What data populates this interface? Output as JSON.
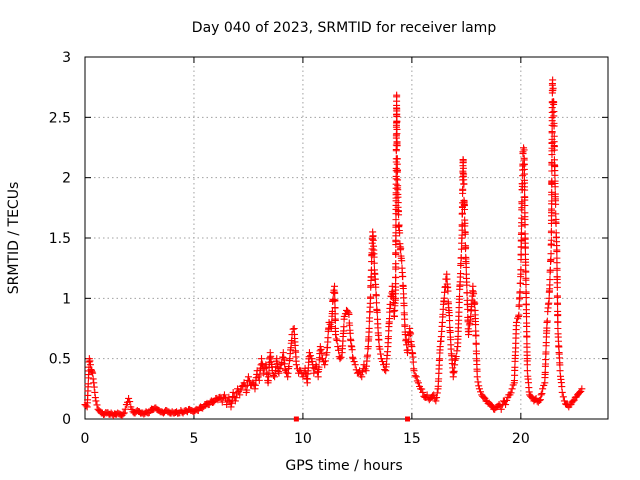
{
  "chart_data": {
    "type": "scatter",
    "title": "Day 040 of 2023, SRMTID for receiver lamp",
    "xlabel": "GPS time / hours",
    "ylabel": "SRMTID / TECUs",
    "xlim": [
      0,
      24
    ],
    "ylim": [
      0,
      3
    ],
    "xticks": [
      0,
      5,
      10,
      15,
      20
    ],
    "yticks": [
      0,
      0.5,
      1,
      1.5,
      2,
      2.5,
      3
    ],
    "ytick_labels": [
      "0",
      "0.5",
      "1",
      "1.5",
      "2",
      "2.5",
      "3"
    ],
    "grid": true,
    "marker": "+",
    "color": "#ff0000",
    "series": [
      {
        "name": "SRMTID",
        "points": [
          [
            0.0,
            0.12
          ],
          [
            0.1,
            0.1
          ],
          [
            0.2,
            0.5
          ],
          [
            0.25,
            0.45
          ],
          [
            0.3,
            0.4
          ],
          [
            0.35,
            0.38
          ],
          [
            0.4,
            0.3
          ],
          [
            0.45,
            0.22
          ],
          [
            0.5,
            0.15
          ],
          [
            0.6,
            0.08
          ],
          [
            0.7,
            0.06
          ],
          [
            0.8,
            0.05
          ],
          [
            0.9,
            0.04
          ],
          [
            1.0,
            0.05
          ],
          [
            1.1,
            0.04
          ],
          [
            1.2,
            0.05
          ],
          [
            1.3,
            0.03
          ],
          [
            1.4,
            0.04
          ],
          [
            1.5,
            0.05
          ],
          [
            1.6,
            0.04
          ],
          [
            1.7,
            0.03
          ],
          [
            1.8,
            0.05
          ],
          [
            1.9,
            0.12
          ],
          [
            2.0,
            0.17
          ],
          [
            2.1,
            0.1
          ],
          [
            2.2,
            0.06
          ],
          [
            2.3,
            0.05
          ],
          [
            2.4,
            0.07
          ],
          [
            2.5,
            0.06
          ],
          [
            2.6,
            0.05
          ],
          [
            2.7,
            0.04
          ],
          [
            2.8,
            0.06
          ],
          [
            2.9,
            0.05
          ],
          [
            3.0,
            0.07
          ],
          [
            3.1,
            0.08
          ],
          [
            3.2,
            0.09
          ],
          [
            3.3,
            0.08
          ],
          [
            3.4,
            0.07
          ],
          [
            3.5,
            0.06
          ],
          [
            3.6,
            0.05
          ],
          [
            3.7,
            0.07
          ],
          [
            3.8,
            0.06
          ],
          [
            3.9,
            0.05
          ],
          [
            4.0,
            0.06
          ],
          [
            4.1,
            0.05
          ],
          [
            4.2,
            0.06
          ],
          [
            4.3,
            0.05
          ],
          [
            4.4,
            0.07
          ],
          [
            4.5,
            0.05
          ],
          [
            4.6,
            0.07
          ],
          [
            4.7,
            0.06
          ],
          [
            4.8,
            0.08
          ],
          [
            4.9,
            0.07
          ],
          [
            5.0,
            0.06
          ],
          [
            5.1,
            0.08
          ],
          [
            5.2,
            0.07
          ],
          [
            5.3,
            0.1
          ],
          [
            5.4,
            0.09
          ],
          [
            5.5,
            0.12
          ],
          [
            5.6,
            0.13
          ],
          [
            5.7,
            0.12
          ],
          [
            5.8,
            0.15
          ],
          [
            5.9,
            0.14
          ],
          [
            6.0,
            0.17
          ],
          [
            6.1,
            0.16
          ],
          [
            6.2,
            0.18
          ],
          [
            6.3,
            0.14
          ],
          [
            6.4,
            0.2
          ],
          [
            6.5,
            0.12
          ],
          [
            6.6,
            0.18
          ],
          [
            6.7,
            0.1
          ],
          [
            6.8,
            0.22
          ],
          [
            6.9,
            0.15
          ],
          [
            7.0,
            0.25
          ],
          [
            7.1,
            0.2
          ],
          [
            7.2,
            0.27
          ],
          [
            7.3,
            0.3
          ],
          [
            7.4,
            0.22
          ],
          [
            7.5,
            0.35
          ],
          [
            7.6,
            0.28
          ],
          [
            7.7,
            0.3
          ],
          [
            7.8,
            0.25
          ],
          [
            7.9,
            0.4
          ],
          [
            8.0,
            0.32
          ],
          [
            8.1,
            0.5
          ],
          [
            8.2,
            0.38
          ],
          [
            8.3,
            0.45
          ],
          [
            8.4,
            0.3
          ],
          [
            8.5,
            0.55
          ],
          [
            8.6,
            0.4
          ],
          [
            8.7,
            0.35
          ],
          [
            8.8,
            0.5
          ],
          [
            8.9,
            0.38
          ],
          [
            9.0,
            0.45
          ],
          [
            9.1,
            0.55
          ],
          [
            9.2,
            0.4
          ],
          [
            9.3,
            0.35
          ],
          [
            9.4,
            0.5
          ],
          [
            9.5,
            0.7
          ],
          [
            9.6,
            0.75
          ],
          [
            9.7,
            0.45
          ],
          [
            9.8,
            0.38
          ],
          [
            9.9,
            0.4
          ],
          [
            10.0,
            0.35
          ],
          [
            10.1,
            0.42
          ],
          [
            10.2,
            0.3
          ],
          [
            10.3,
            0.55
          ],
          [
            10.4,
            0.5
          ],
          [
            10.5,
            0.38
          ],
          [
            10.6,
            0.45
          ],
          [
            10.7,
            0.35
          ],
          [
            10.8,
            0.6
          ],
          [
            10.9,
            0.5
          ],
          [
            11.0,
            0.45
          ],
          [
            11.1,
            0.55
          ],
          [
            11.2,
            0.8
          ],
          [
            11.3,
            0.75
          ],
          [
            11.4,
            1.05
          ],
          [
            11.45,
            1.1
          ],
          [
            11.5,
            0.7
          ],
          [
            11.6,
            0.6
          ],
          [
            11.7,
            0.5
          ],
          [
            11.8,
            0.55
          ],
          [
            11.9,
            0.85
          ],
          [
            12.0,
            0.9
          ],
          [
            12.1,
            0.88
          ],
          [
            12.2,
            0.65
          ],
          [
            12.3,
            0.5
          ],
          [
            12.4,
            0.45
          ],
          [
            12.5,
            0.38
          ],
          [
            12.6,
            0.4
          ],
          [
            12.7,
            0.35
          ],
          [
            12.8,
            0.45
          ],
          [
            12.9,
            0.4
          ],
          [
            13.0,
            0.6
          ],
          [
            13.1,
            1.0
          ],
          [
            13.2,
            1.55
          ],
          [
            13.25,
            1.4
          ],
          [
            13.3,
            1.2
          ],
          [
            13.4,
            0.9
          ],
          [
            13.5,
            0.6
          ],
          [
            13.6,
            0.5
          ],
          [
            13.7,
            0.45
          ],
          [
            13.8,
            0.4
          ],
          [
            13.9,
            0.6
          ],
          [
            14.0,
            0.95
          ],
          [
            14.1,
            1.1
          ],
          [
            14.2,
            0.85
          ],
          [
            14.25,
            1.0
          ],
          [
            14.3,
            2.67
          ],
          [
            14.32,
            2.27
          ],
          [
            14.35,
            1.9
          ],
          [
            14.4,
            1.6
          ],
          [
            14.5,
            1.35
          ],
          [
            14.55,
            1.25
          ],
          [
            14.6,
            1.1
          ],
          [
            14.7,
            0.7
          ],
          [
            14.8,
            0.55
          ],
          [
            14.9,
            0.75
          ],
          [
            15.0,
            0.6
          ],
          [
            15.1,
            0.4
          ],
          [
            15.2,
            0.35
          ],
          [
            15.3,
            0.3
          ],
          [
            15.4,
            0.25
          ],
          [
            15.5,
            0.22
          ],
          [
            15.6,
            0.18
          ],
          [
            15.7,
            0.2
          ],
          [
            15.8,
            0.16
          ],
          [
            15.9,
            0.18
          ],
          [
            16.0,
            0.2
          ],
          [
            16.1,
            0.15
          ],
          [
            16.2,
            0.25
          ],
          [
            16.3,
            0.6
          ],
          [
            16.4,
            0.8
          ],
          [
            16.5,
            1.05
          ],
          [
            16.6,
            1.2
          ],
          [
            16.7,
            0.9
          ],
          [
            16.8,
            0.58
          ],
          [
            16.9,
            0.35
          ],
          [
            17.0,
            0.5
          ],
          [
            17.1,
            0.6
          ],
          [
            17.2,
            1.1
          ],
          [
            17.3,
            1.5
          ],
          [
            17.35,
            2.15
          ],
          [
            17.4,
            1.8
          ],
          [
            17.5,
            1.2
          ],
          [
            17.6,
            0.7
          ],
          [
            17.7,
            0.85
          ],
          [
            17.8,
            1.1
          ],
          [
            17.9,
            0.9
          ],
          [
            18.0,
            0.35
          ],
          [
            18.1,
            0.25
          ],
          [
            18.2,
            0.2
          ],
          [
            18.3,
            0.18
          ],
          [
            18.4,
            0.15
          ],
          [
            18.5,
            0.13
          ],
          [
            18.6,
            0.12
          ],
          [
            18.7,
            0.1
          ],
          [
            18.8,
            0.08
          ],
          [
            18.9,
            0.1
          ],
          [
            19.0,
            0.12
          ],
          [
            19.1,
            0.08
          ],
          [
            19.2,
            0.15
          ],
          [
            19.3,
            0.12
          ],
          [
            19.4,
            0.18
          ],
          [
            19.5,
            0.2
          ],
          [
            19.6,
            0.25
          ],
          [
            19.7,
            0.3
          ],
          [
            19.8,
            0.8
          ],
          [
            19.9,
            0.85
          ],
          [
            20.0,
            1.2
          ],
          [
            20.05,
            1.8
          ],
          [
            20.1,
            2.2
          ],
          [
            20.15,
            2.23
          ],
          [
            20.2,
            1.5
          ],
          [
            20.3,
            0.4
          ],
          [
            20.4,
            0.2
          ],
          [
            20.5,
            0.18
          ],
          [
            20.6,
            0.15
          ],
          [
            20.7,
            0.17
          ],
          [
            20.8,
            0.14
          ],
          [
            20.9,
            0.16
          ],
          [
            21.0,
            0.25
          ],
          [
            21.1,
            0.3
          ],
          [
            21.2,
            0.8
          ],
          [
            21.3,
            1.0
          ],
          [
            21.4,
            1.45
          ],
          [
            21.45,
            2.78
          ],
          [
            21.5,
            2.63
          ],
          [
            21.52,
            2.45
          ],
          [
            21.55,
            2.1
          ],
          [
            21.6,
            1.7
          ],
          [
            21.65,
            1.4
          ],
          [
            21.7,
            0.75
          ],
          [
            21.8,
            0.4
          ],
          [
            21.9,
            0.22
          ],
          [
            22.0,
            0.15
          ],
          [
            22.1,
            0.12
          ],
          [
            22.2,
            0.1
          ],
          [
            22.3,
            0.12
          ],
          [
            22.4,
            0.15
          ],
          [
            22.5,
            0.18
          ],
          [
            22.6,
            0.2
          ],
          [
            22.7,
            0.22
          ],
          [
            22.8,
            0.25
          ]
        ]
      }
    ],
    "baseline_markers": [
      9.7,
      14.8
    ]
  }
}
